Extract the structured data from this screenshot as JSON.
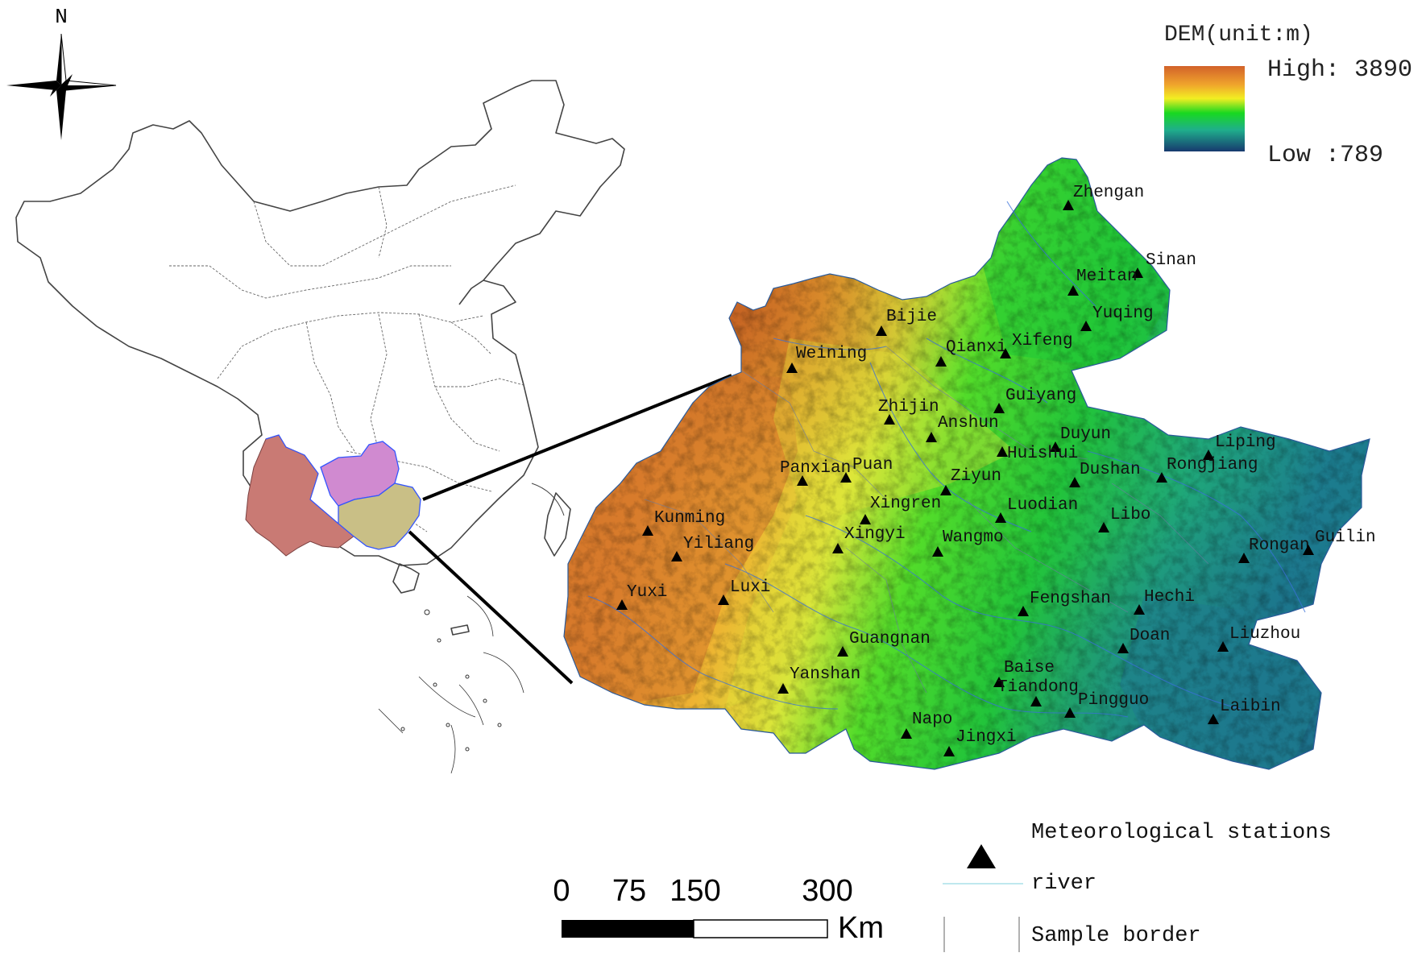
{
  "north_label": "N",
  "legend_title": "DEM(unit:m)",
  "dem_high": "High: 3890",
  "dem_low": "Low :789",
  "colors": {
    "dem_high": "#c85a1a",
    "dem_mid_high": "#f0a030",
    "dem_mid": "#f2ee20",
    "dem_green": "#1fd41f",
    "dem_low": "#1a3f8a",
    "yunnan": "#c97a74",
    "guizhou": "#d08ad0",
    "guangxi": "#c9bf86",
    "border": "#3355ff"
  },
  "scale_bar": {
    "ticks": [
      "0",
      "75",
      "150",
      "300"
    ],
    "unit": "Km"
  },
  "legend_items": {
    "stations": "Meteorological stations",
    "river": "river",
    "border": "Sample border"
  },
  "stations": [
    {
      "name": "Zhengan"
    },
    {
      "name": "Sinan"
    },
    {
      "name": "Meitan"
    },
    {
      "name": "Yuqing"
    },
    {
      "name": "Bijie"
    },
    {
      "name": "Qianxi"
    },
    {
      "name": "Xifeng"
    },
    {
      "name": "Weining"
    },
    {
      "name": "Guiyang"
    },
    {
      "name": "Zhijin"
    },
    {
      "name": "Anshun"
    },
    {
      "name": "Duyun"
    },
    {
      "name": "Huishui"
    },
    {
      "name": "Liping"
    },
    {
      "name": "Dushan"
    },
    {
      "name": "Rongjiang"
    },
    {
      "name": "Panxian"
    },
    {
      "name": "Puan"
    },
    {
      "name": "Ziyun"
    },
    {
      "name": "Xingren"
    },
    {
      "name": "Luodian"
    },
    {
      "name": "Libo"
    },
    {
      "name": "Kunming"
    },
    {
      "name": "Xingyi"
    },
    {
      "name": "Wangmo"
    },
    {
      "name": "Yiliang"
    },
    {
      "name": "Rongan"
    },
    {
      "name": "Guilin"
    },
    {
      "name": "Yuxi"
    },
    {
      "name": "Luxi"
    },
    {
      "name": "Fengshan"
    },
    {
      "name": "Hechi"
    },
    {
      "name": "Guangnan"
    },
    {
      "name": "Doan"
    },
    {
      "name": "Liuzhou"
    },
    {
      "name": "Yanshan"
    },
    {
      "name": "Baise"
    },
    {
      "name": "Tiandong"
    },
    {
      "name": "Pingguo"
    },
    {
      "name": "Laibin"
    },
    {
      "name": "Napo"
    },
    {
      "name": "Jingxi"
    }
  ]
}
